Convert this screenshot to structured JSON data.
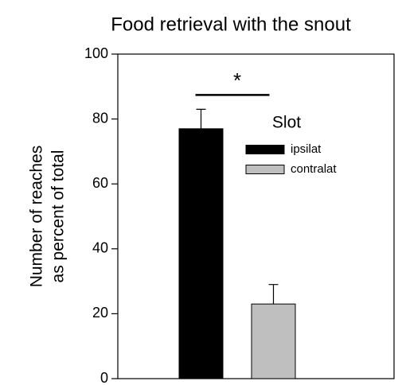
{
  "chart_data": {
    "type": "bar",
    "title": "Food retrieval with the snout",
    "y_label": [
      "Number of reaches",
      "as percent of total"
    ],
    "categories": [
      null
    ],
    "legend_title": "Slot",
    "series": [
      {
        "name": "ipsilat",
        "color": "#000000",
        "values": [
          77
        ],
        "errors": [
          6
        ]
      },
      {
        "name": "contralat",
        "color": "#bfbfbf",
        "values": [
          23
        ],
        "errors": [
          6
        ]
      }
    ],
    "annotation": "*",
    "ylim": [
      0,
      100
    ],
    "yticks": [
      0,
      20,
      40,
      60,
      80,
      100
    ],
    "grid": false
  }
}
